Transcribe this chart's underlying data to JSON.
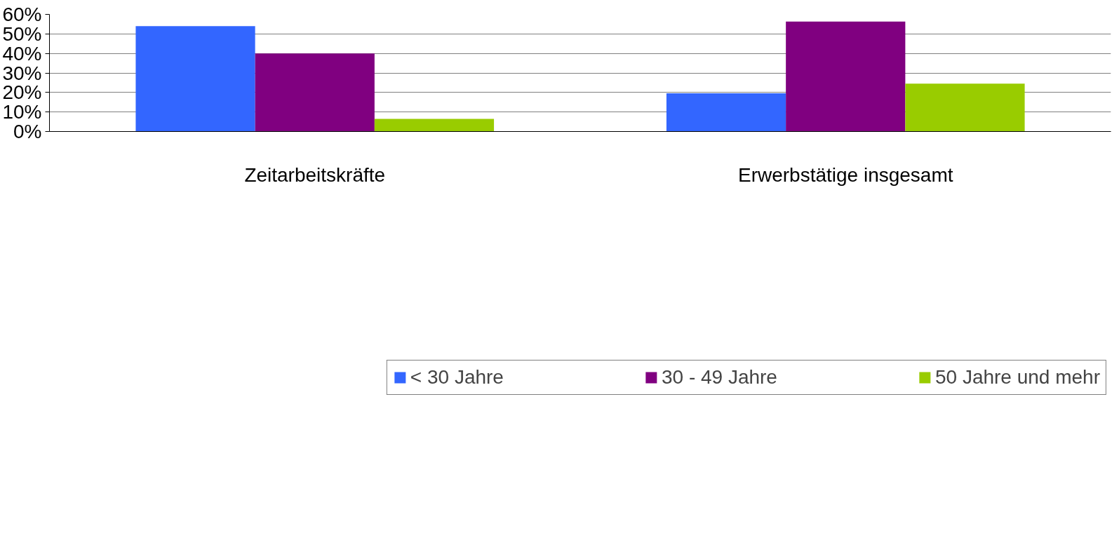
{
  "chart_data": {
    "type": "bar",
    "categories": [
      "Zeitarbeitskräfte",
      "Erwerbstätige insgesamt"
    ],
    "series": [
      {
        "name": "< 30 Jahre",
        "color": "#3366ff",
        "values": [
          54,
          19.6
        ]
      },
      {
        "name": "30 - 49 Jahre",
        "color": "#800080",
        "values": [
          40,
          56.3
        ]
      },
      {
        "name": "50 Jahre und mehr",
        "color": "#99cc00",
        "values": [
          6.5,
          24.5
        ]
      }
    ],
    "ylim": [
      0,
      60
    ],
    "yticks": [
      {
        "value": 0,
        "label": "0%"
      },
      {
        "value": 10,
        "label": "10%"
      },
      {
        "value": 20,
        "label": "20%"
      },
      {
        "value": 30,
        "label": "30%"
      },
      {
        "value": 40,
        "label": "40%"
      },
      {
        "value": 50,
        "label": "50%"
      },
      {
        "value": 60,
        "label": "60%"
      }
    ],
    "grid": "y",
    "legend": "bottom"
  }
}
